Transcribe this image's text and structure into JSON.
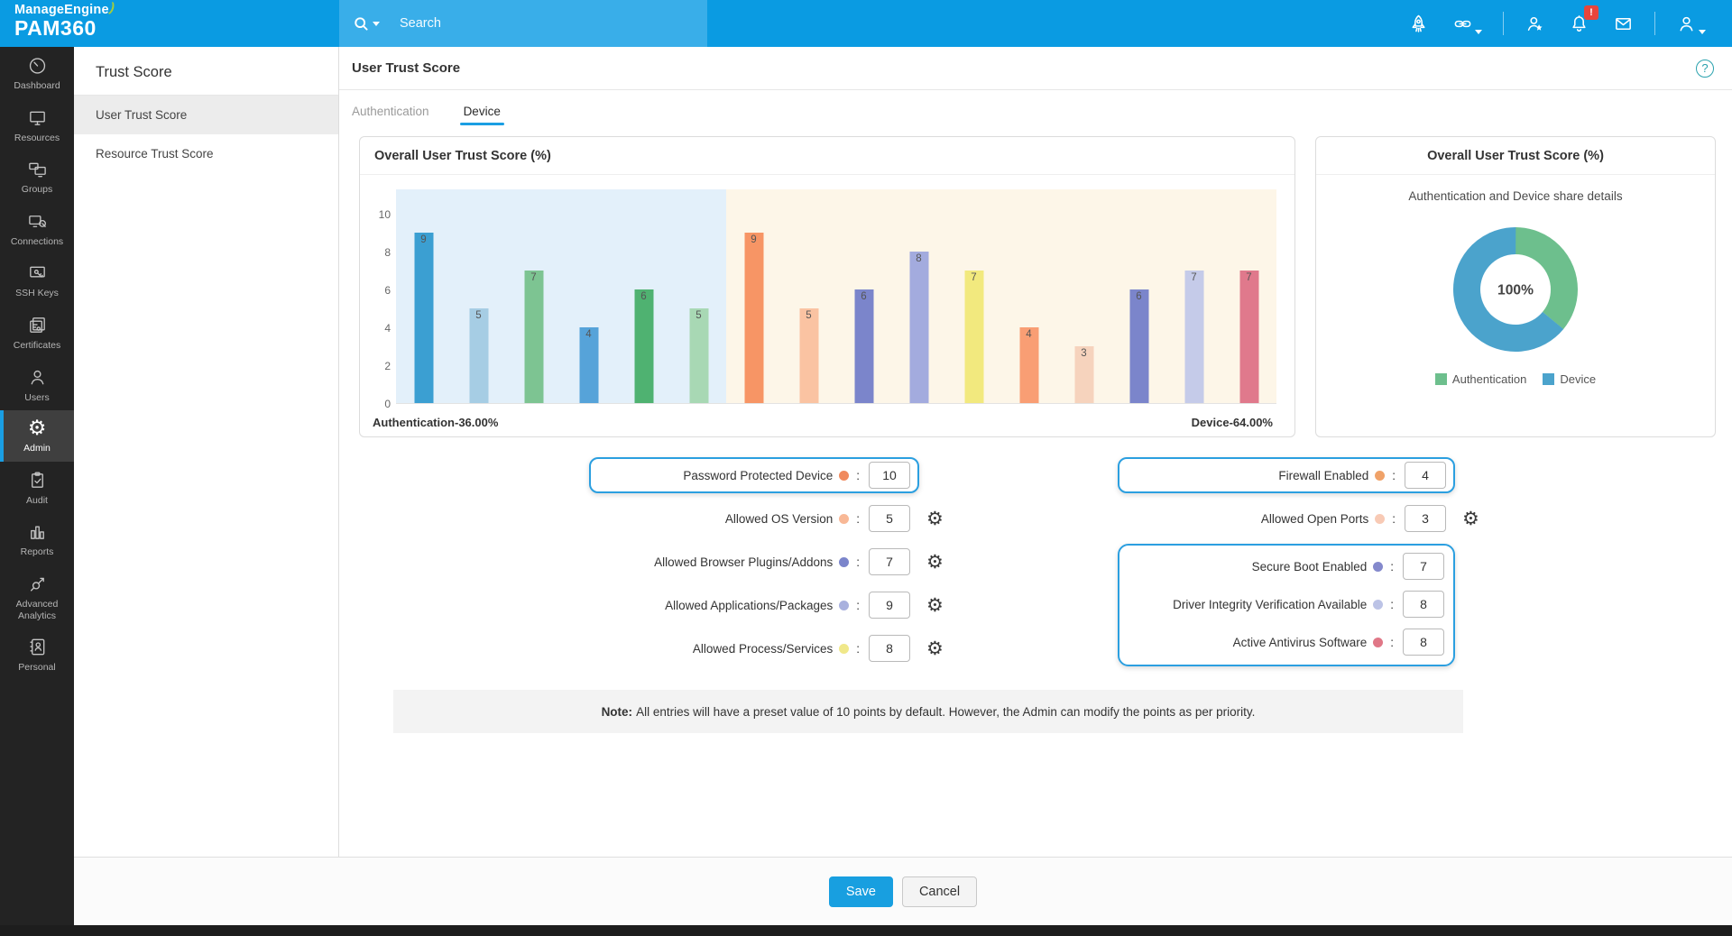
{
  "topbar": {
    "brand_line1": "ManageEngine",
    "brand_swoosh": ")",
    "brand_line2": "PAM360",
    "search_placeholder": "Search",
    "icons": [
      {
        "name": "launcher",
        "icon": "rocket"
      },
      {
        "name": "quick-links",
        "icon": "link",
        "caret": true
      },
      {
        "name": "user-favorites",
        "icon": "user-star",
        "divider_before": true
      },
      {
        "name": "notifications",
        "icon": "bell",
        "badge": "!"
      },
      {
        "name": "messages",
        "icon": "envelope"
      },
      {
        "name": "account",
        "icon": "user",
        "caret": true,
        "divider_before": true
      }
    ]
  },
  "sidebar": {
    "items": [
      {
        "label": "Dashboard",
        "icon": "gauge"
      },
      {
        "label": "Resources",
        "icon": "monitor"
      },
      {
        "label": "Groups",
        "icon": "monitors"
      },
      {
        "label": "Connections",
        "icon": "remote"
      },
      {
        "label": "SSH Keys",
        "icon": "ssh"
      },
      {
        "label": "Certificates",
        "icon": "certificate"
      },
      {
        "label": "Users",
        "icon": "user"
      },
      {
        "label": "Admin",
        "icon": "gear",
        "active": true
      },
      {
        "label": "Audit",
        "icon": "clipboard"
      },
      {
        "label": "Reports",
        "icon": "chart"
      },
      {
        "label": "Advanced Analytics",
        "icon": "analytics"
      },
      {
        "label": "Personal",
        "icon": "addressbook"
      }
    ]
  },
  "subsidebar": {
    "title": "Trust Score",
    "items": [
      {
        "label": "User Trust Score",
        "active": true
      },
      {
        "label": "Resource Trust Score",
        "active": false
      }
    ]
  },
  "page": {
    "title": "User Trust Score",
    "help_icon": "?",
    "tabs": [
      {
        "label": "Authentication",
        "active": false
      },
      {
        "label": "Device",
        "active": true
      }
    ]
  },
  "chart_data": [
    {
      "type": "bar",
      "title": "Overall User Trust Score (%)",
      "ylim": [
        0,
        10
      ],
      "yticks": [
        0,
        2,
        4,
        6,
        8,
        10
      ],
      "grid": false,
      "groups": [
        {
          "name": "Authentication",
          "share_label": "Authentication-36.00%",
          "bg": "#e3f0fa",
          "values": [
            9,
            5,
            7,
            4,
            6,
            5
          ],
          "colors": [
            "#3b9fd2",
            "#a6cde4",
            "#7dc492",
            "#56a3d9",
            "#4fb271",
            "#a8d8b4"
          ]
        },
        {
          "name": "Device",
          "share_label": "Device-64.00%",
          "bg": "#fdf6e8",
          "values": [
            9,
            5,
            6,
            8,
            7,
            4,
            3,
            6,
            7,
            7
          ],
          "colors": [
            "#f79565",
            "#fac3a2",
            "#7b85cb",
            "#a3abde",
            "#f2e97e",
            "#f99e74",
            "#f6d3bd",
            "#7b85cb",
            "#c5cbe9",
            "#e0798c"
          ]
        }
      ]
    },
    {
      "type": "pie",
      "title": "Overall User Trust Score (%)",
      "subtitle": "Authentication and Device share details",
      "center_label": "100%",
      "legend_position": "bottom",
      "slices": [
        {
          "label": "Authentication",
          "value": 36,
          "color": "#6dbf8d"
        },
        {
          "label": "Device",
          "value": 64,
          "color": "#4ba3cc"
        }
      ]
    }
  ],
  "form": {
    "separator": ":",
    "left": [
      {
        "label": "Password Protected Device",
        "dot": "#f08a5e",
        "value": "10",
        "highlight": true
      },
      {
        "label": "Allowed OS Version",
        "dot": "#f8b896",
        "value": "5",
        "gear": true
      },
      {
        "label": "Allowed Browser Plugins/Addons",
        "dot": "#7b85cb",
        "value": "7",
        "gear": true
      },
      {
        "label": "Allowed Applications/Packages",
        "dot": "#a9b1de",
        "value": "9",
        "gear": true
      },
      {
        "label": "Allowed Process/Services",
        "dot": "#f0e88a",
        "value": "8",
        "gear": true
      }
    ],
    "right": [
      {
        "label": "Firewall Enabled",
        "dot": "#f0a269",
        "value": "4",
        "highlight": true
      },
      {
        "label": "Allowed Open Ports",
        "dot": "#f8cab5",
        "value": "3",
        "gear": true
      },
      {
        "group": [
          {
            "label": "Secure Boot Enabled",
            "dot": "#8489cc",
            "value": "7"
          },
          {
            "label": "Driver Integrity Verification Available",
            "dot": "#bcc3e6",
            "value": "8"
          },
          {
            "label": "Active Antivirus Software",
            "dot": "#e07787",
            "value": "8"
          }
        ]
      }
    ]
  },
  "note": {
    "label": "Note:",
    "text": "All entries will have a preset value of 10 points by default. However, the Admin can modify the points as per priority."
  },
  "footer": {
    "save_label": "Save",
    "cancel_label": "Cancel"
  },
  "colors": {
    "topbar": "#0a9be2",
    "accent": "#1a9ee3",
    "sidebar_bg": "#232323",
    "highlight_border": "#2b9fe0"
  }
}
